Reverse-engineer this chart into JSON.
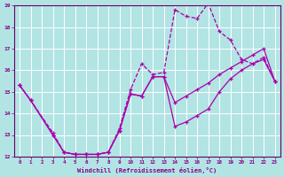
{
  "bg_color": "#b2e4e4",
  "grid_color": "#ffffff",
  "line_color": "#aa00aa",
  "xlim": [
    -0.5,
    23.5
  ],
  "ylim": [
    12,
    19
  ],
  "xticks": [
    0,
    1,
    2,
    3,
    4,
    5,
    6,
    7,
    8,
    9,
    10,
    11,
    12,
    13,
    14,
    15,
    16,
    17,
    18,
    19,
    20,
    21,
    22,
    23
  ],
  "yticks": [
    12,
    13,
    14,
    15,
    16,
    17,
    18,
    19
  ],
  "xlabel": "Windchill (Refroidissement éolien,°C)",
  "series1_x": [
    0,
    1,
    3,
    4,
    5,
    6,
    7,
    8,
    9,
    10,
    11,
    12,
    13,
    14,
    15,
    16,
    17,
    18,
    19,
    20,
    21,
    22,
    23
  ],
  "series1_y": [
    15.3,
    14.6,
    13.1,
    12.2,
    12.1,
    12.1,
    12.1,
    12.2,
    13.3,
    15.1,
    16.3,
    15.8,
    15.9,
    18.8,
    18.5,
    18.4,
    19.1,
    17.8,
    17.4,
    16.5,
    16.3,
    16.6,
    15.5
  ],
  "series2_x": [
    0,
    1,
    3,
    4,
    5,
    6,
    7,
    8,
    9,
    10,
    11,
    12,
    13,
    14,
    15,
    16,
    17,
    18,
    19,
    20,
    21,
    22,
    23
  ],
  "series2_y": [
    15.3,
    14.6,
    13.0,
    12.2,
    12.1,
    12.1,
    12.1,
    12.2,
    13.2,
    14.9,
    14.8,
    15.7,
    15.7,
    13.4,
    13.6,
    13.9,
    14.2,
    15.0,
    15.6,
    16.0,
    16.3,
    16.5,
    15.5
  ],
  "series3_x": [
    0,
    1,
    3,
    4,
    5,
    6,
    7,
    8,
    9,
    10,
    11,
    12,
    13,
    14,
    15,
    16,
    17,
    18,
    19,
    20,
    21,
    22,
    23
  ],
  "series3_y": [
    15.3,
    14.6,
    13.0,
    12.2,
    12.1,
    12.1,
    12.1,
    12.2,
    13.2,
    14.9,
    14.8,
    15.7,
    15.7,
    14.5,
    14.8,
    15.1,
    15.4,
    15.8,
    16.1,
    16.4,
    16.7,
    17.0,
    15.5
  ]
}
